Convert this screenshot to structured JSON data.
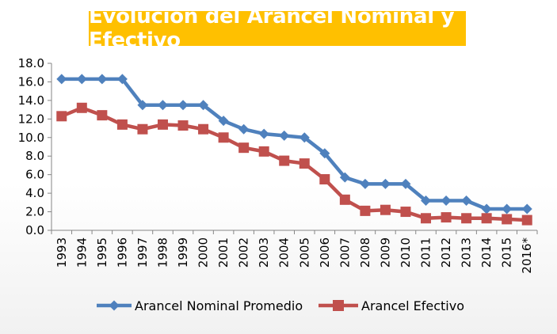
{
  "chart_data": {
    "type": "line",
    "title": "Evolución del Arancel Nominal y Efectivo",
    "categories": [
      "1993",
      "1994",
      "1995",
      "1996",
      "1997",
      "1998",
      "1999",
      "2000",
      "2001",
      "2002",
      "2003",
      "2004",
      "2005",
      "2006",
      "2007",
      "2008",
      "2009",
      "2010",
      "2011",
      "2012",
      "2013",
      "2014",
      "2015",
      "2016*"
    ],
    "ylim": [
      0,
      18
    ],
    "yticks": [
      "0.0",
      "2.0",
      "4.0",
      "6.0",
      "8.0",
      "10.0",
      "12.0",
      "14.0",
      "16.0",
      "18.0"
    ],
    "grid": false,
    "legend_position": "bottom",
    "series": [
      {
        "name": "Arancel Nominal Promedio",
        "color": "#4f81bd",
        "marker": "diamond",
        "values": [
          16.3,
          16.3,
          16.3,
          16.3,
          13.5,
          13.5,
          13.5,
          13.5,
          11.8,
          10.9,
          10.4,
          10.2,
          10.0,
          8.3,
          5.7,
          5.0,
          5.0,
          5.0,
          3.2,
          3.2,
          3.2,
          2.3,
          2.3,
          2.3
        ]
      },
      {
        "name": "Arancel Efectivo",
        "color": "#c0504d",
        "marker": "square",
        "values": [
          12.3,
          13.2,
          12.4,
          11.4,
          10.9,
          11.4,
          11.3,
          10.9,
          10.0,
          8.9,
          8.5,
          7.5,
          7.2,
          5.5,
          3.3,
          2.1,
          2.2,
          2.0,
          1.3,
          1.4,
          1.3,
          1.3,
          1.2,
          1.1
        ]
      }
    ]
  }
}
